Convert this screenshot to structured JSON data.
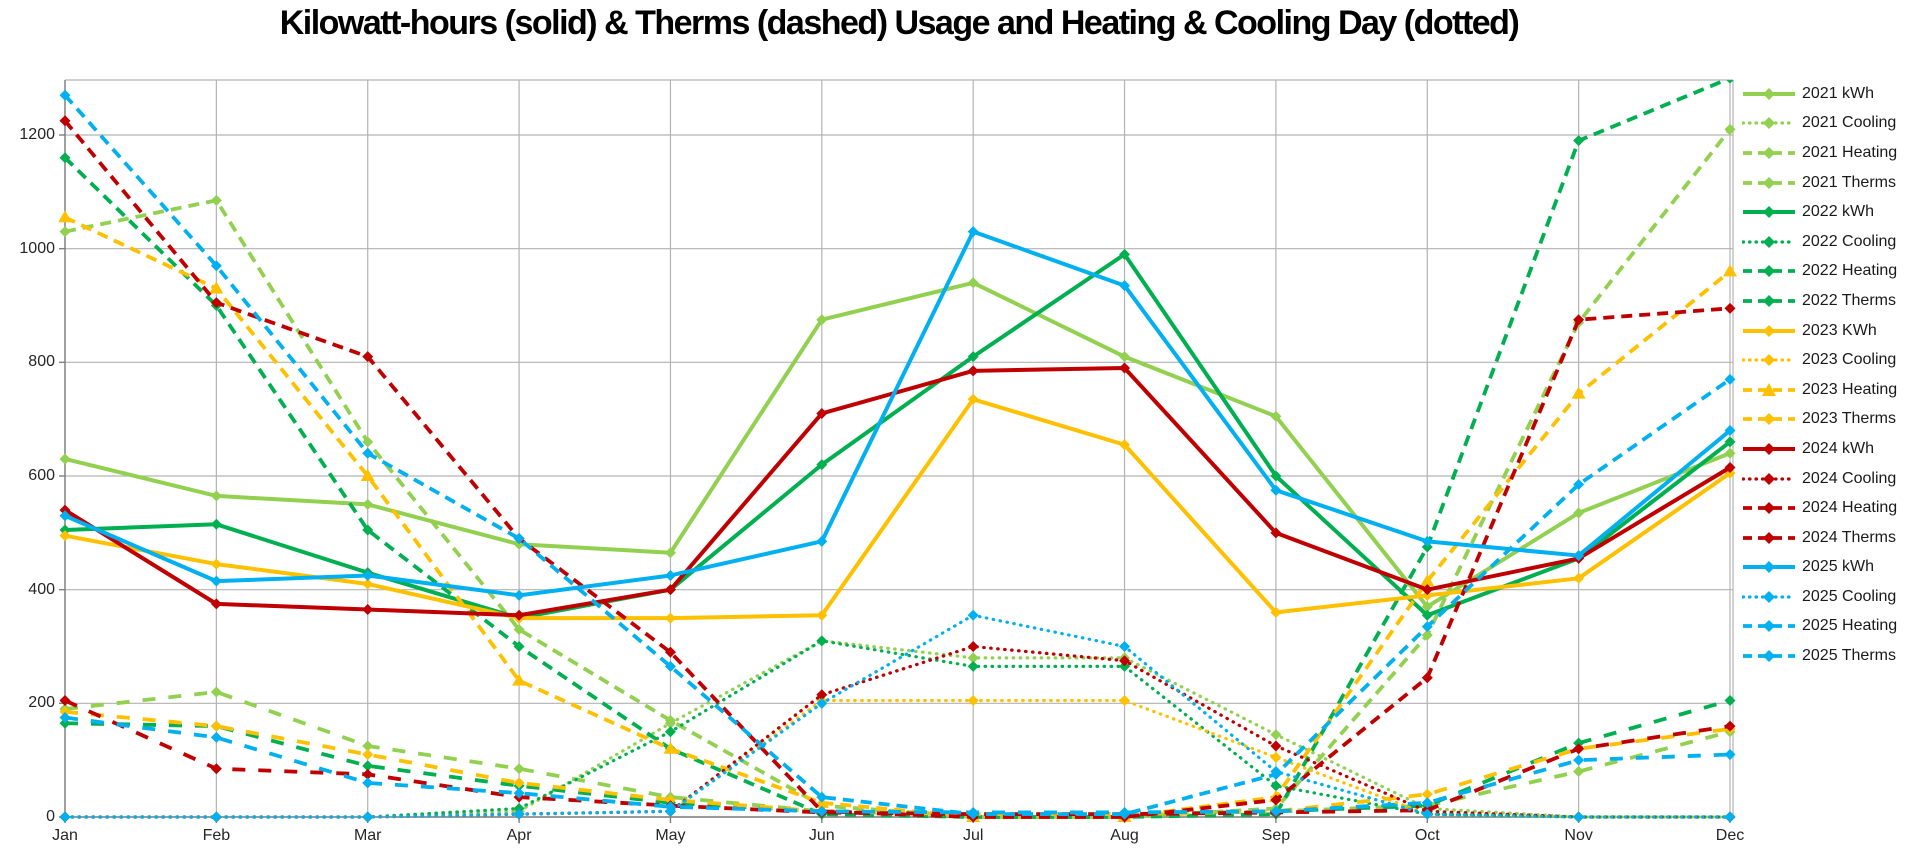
{
  "title": "Kilowatt-hours (solid) & Therms (dashed) Usage and Heating & Cooling Day (dotted)",
  "axes": {
    "x_labels": [
      "Jan",
      "Feb",
      "Mar",
      "Apr",
      "May",
      "Jun",
      "Jul",
      "Aug",
      "Sep",
      "Oct",
      "Nov",
      "Dec"
    ],
    "y_ticks": [
      0,
      200,
      400,
      600,
      800,
      1000,
      1200
    ]
  },
  "palette": {
    "grid": "#B3B3B3",
    "axis": "#7F7F7F",
    "y2021": "#92D050",
    "y2022": "#00B050",
    "y2023": "#FFC000",
    "y2024": "#C00000",
    "y2025": "#00B0F0"
  },
  "chart_data": {
    "type": "line",
    "title": "Kilowatt-hours (solid) & Therms (dashed) Usage and Heating & Cooling Day (dotted)",
    "x": [
      "Jan",
      "Feb",
      "Mar",
      "Apr",
      "May",
      "Jun",
      "Jul",
      "Aug",
      "Sep",
      "Oct",
      "Nov",
      "Dec"
    ],
    "xlabel": "",
    "ylabel": "",
    "ylim": [
      0,
      1300
    ],
    "grid": true,
    "legend_position": "right",
    "series": [
      {
        "name": "2021 kWh",
        "color": "#92D050",
        "style": "solid",
        "marker": "diamond",
        "values": [
          630,
          565,
          550,
          480,
          465,
          875,
          940,
          810,
          705,
          370,
          535,
          640
        ]
      },
      {
        "name": "2021 Cooling",
        "color": "#92D050",
        "style": "dotted",
        "marker": "diamond",
        "values": [
          0,
          0,
          0,
          10,
          165,
          310,
          280,
          280,
          145,
          15,
          0,
          0
        ]
      },
      {
        "name": "2021 Heating",
        "color": "#92D050",
        "style": "dashed",
        "marker": "diamond",
        "values": [
          1030,
          1085,
          660,
          330,
          170,
          20,
          0,
          0,
          15,
          320,
          870,
          1210
        ]
      },
      {
        "name": "2021 Therms",
        "color": "#92D050",
        "style": "longdash",
        "marker": "diamond",
        "values": [
          190,
          220,
          125,
          85,
          35,
          10,
          5,
          5,
          10,
          20,
          80,
          150
        ]
      },
      {
        "name": "2022 kWh",
        "color": "#00B050",
        "style": "solid",
        "marker": "diamond",
        "values": [
          505,
          515,
          430,
          350,
          400,
          620,
          810,
          990,
          600,
          355,
          455,
          660
        ]
      },
      {
        "name": "2022 Cooling",
        "color": "#00B050",
        "style": "dotted",
        "marker": "diamond",
        "values": [
          0,
          0,
          0,
          15,
          150,
          310,
          265,
          265,
          55,
          5,
          0,
          0
        ]
      },
      {
        "name": "2022 Heating",
        "color": "#00B050",
        "style": "dashed",
        "marker": "diamond",
        "values": [
          1160,
          900,
          505,
          300,
          120,
          5,
          0,
          0,
          5,
          475,
          1190,
          1300
        ]
      },
      {
        "name": "2022 Therms",
        "color": "#00B050",
        "style": "longdash",
        "marker": "diamond",
        "values": [
          165,
          160,
          90,
          55,
          25,
          10,
          5,
          5,
          10,
          20,
          130,
          205
        ]
      },
      {
        "name": "2023 KWh",
        "color": "#FFC000",
        "style": "solid",
        "marker": "diamond",
        "values": [
          495,
          445,
          410,
          350,
          350,
          355,
          735,
          655,
          360,
          390,
          420,
          605
        ]
      },
      {
        "name": "2023 Cooling",
        "color": "#FFC000",
        "style": "dotted",
        "marker": "diamond",
        "values": [
          0,
          0,
          0,
          5,
          10,
          205,
          205,
          205,
          105,
          5,
          0,
          0
        ]
      },
      {
        "name": "2023 Heating",
        "color": "#FFC000",
        "style": "dashed",
        "marker": "triangle",
        "values": [
          1055,
          930,
          600,
          240,
          120,
          25,
          0,
          0,
          35,
          415,
          745,
          960
        ]
      },
      {
        "name": "2023 Therms",
        "color": "#FFC000",
        "style": "longdash",
        "marker": "diamond",
        "values": [
          185,
          160,
          110,
          60,
          30,
          10,
          5,
          5,
          10,
          40,
          120,
          155
        ]
      },
      {
        "name": "2024 kWh",
        "color": "#C00000",
        "style": "solid",
        "marker": "diamond",
        "values": [
          540,
          375,
          365,
          355,
          400,
          710,
          785,
          790,
          500,
          400,
          455,
          615
        ]
      },
      {
        "name": "2024 Cooling",
        "color": "#C00000",
        "style": "dotted",
        "marker": "diamond",
        "values": [
          0,
          0,
          0,
          5,
          10,
          215,
          300,
          275,
          125,
          10,
          0,
          0
        ]
      },
      {
        "name": "2024 Heating",
        "color": "#C00000",
        "style": "dashed",
        "marker": "diamond",
        "values": [
          1225,
          905,
          810,
          490,
          290,
          10,
          0,
          0,
          30,
          245,
          875,
          895
        ]
      },
      {
        "name": "2024 Therms",
        "color": "#C00000",
        "style": "longdash",
        "marker": "diamond",
        "values": [
          205,
          85,
          75,
          35,
          20,
          8,
          5,
          5,
          8,
          12,
          120,
          160
        ]
      },
      {
        "name": "2025 kWh",
        "color": "#00B0F0",
        "style": "solid",
        "marker": "diamond",
        "values": [
          530,
          415,
          425,
          390,
          425,
          485,
          1030,
          935,
          575,
          485,
          460,
          680
        ]
      },
      {
        "name": "2025 Cooling",
        "color": "#00B0F0",
        "style": "dotted",
        "marker": "diamond",
        "values": [
          0,
          0,
          0,
          5,
          10,
          200,
          355,
          300,
          80,
          5,
          0,
          0
        ]
      },
      {
        "name": "2025 Heating",
        "color": "#00B0F0",
        "style": "dashed",
        "marker": "diamond",
        "values": [
          1270,
          970,
          640,
          490,
          265,
          35,
          5,
          5,
          75,
          335,
          585,
          770
        ]
      },
      {
        "name": "2025 Therms",
        "color": "#00B0F0",
        "style": "longdash",
        "marker": "diamond",
        "values": [
          175,
          140,
          60,
          42,
          18,
          10,
          8,
          8,
          10,
          25,
          100,
          110
        ]
      }
    ]
  }
}
